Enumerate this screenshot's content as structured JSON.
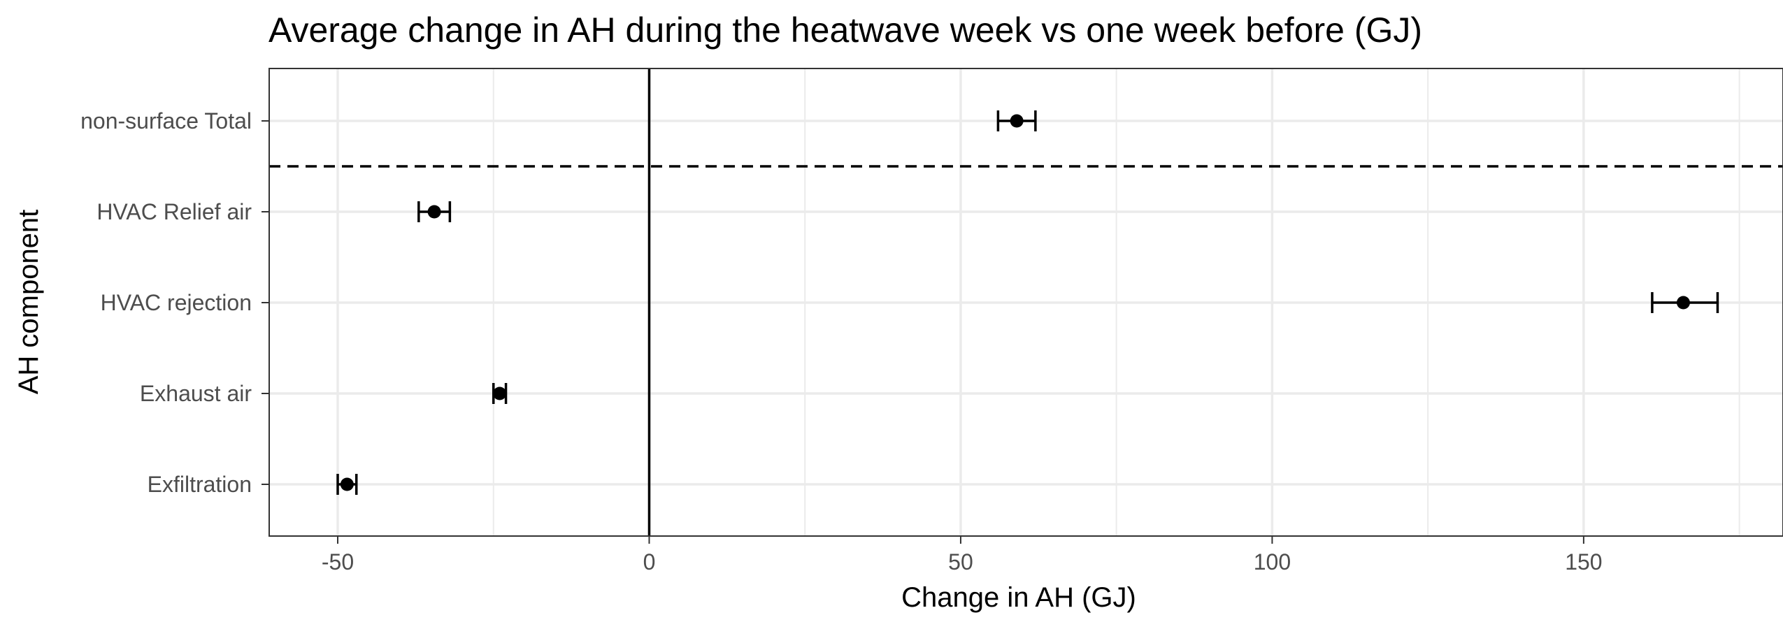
{
  "chart_data": {
    "type": "errorbar",
    "title": "Average change in AH during the heatwave week vs one week before (GJ)",
    "xlabel": "Change in AH (GJ)",
    "ylabel": "AH component",
    "xlim": [
      -61,
      182
    ],
    "x_ticks": [
      -50,
      0,
      50,
      100,
      150
    ],
    "x_tick_labels": [
      "-50",
      "0",
      "50",
      "100",
      "150"
    ],
    "categories": [
      "non-surface Total",
      "HVAC Relief air",
      "HVAC rejection",
      "Exhaust air",
      "Exfiltration"
    ],
    "points": [
      {
        "category": "non-surface Total",
        "value": 59,
        "lower": 56,
        "upper": 62
      },
      {
        "category": "HVAC Relief air",
        "value": -34.5,
        "lower": -37,
        "upper": -32
      },
      {
        "category": "HVAC rejection",
        "value": 166,
        "lower": 161,
        "upper": 171.5
      },
      {
        "category": "Exhaust air",
        "value": -24,
        "lower": -25,
        "upper": -23
      },
      {
        "category": "Exfiltration",
        "value": -48.5,
        "lower": -50,
        "upper": -47
      }
    ],
    "reference_lines": [
      {
        "orientation": "vertical",
        "value": 0,
        "style": "solid"
      },
      {
        "orientation": "horizontal",
        "between": [
          "non-surface Total",
          "HVAC Relief air"
        ],
        "style": "dashed"
      }
    ],
    "grid": true,
    "legend": "none",
    "theme": "bw",
    "colors": {
      "point": "#000000",
      "grid": "#ebebeb",
      "panel_border": "#333333",
      "tick_text": "#4d4d4d"
    }
  }
}
